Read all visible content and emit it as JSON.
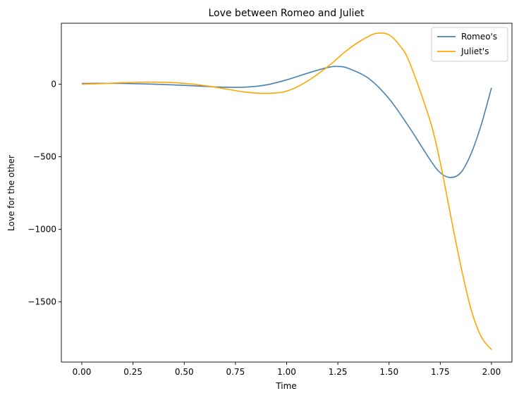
{
  "chart_data": {
    "type": "line",
    "title": "Love between Romeo and Juliet",
    "xlabel": "Time",
    "ylabel": "Love for the other",
    "xlim": [
      -0.1,
      2.1
    ],
    "ylim": [
      -1915,
      420
    ],
    "xticks": [
      0.0,
      0.25,
      0.5,
      0.75,
      1.0,
      1.25,
      1.5,
      1.75,
      2.0
    ],
    "xtick_labels": [
      "0.00",
      "0.25",
      "0.50",
      "0.75",
      "1.00",
      "1.25",
      "1.50",
      "1.75",
      "2.00"
    ],
    "yticks": [
      0,
      -500,
      -1000,
      -1500
    ],
    "ytick_labels": [
      "0",
      "−500",
      "−1000",
      "−1500"
    ],
    "grid": false,
    "legend_position": "top-right",
    "series": [
      {
        "name": "Romeo's",
        "color": "#4682b4",
        "x": [
          0.0,
          0.1,
          0.2,
          0.3,
          0.4,
          0.5,
          0.6,
          0.7,
          0.8,
          0.9,
          1.0,
          1.1,
          1.2,
          1.25,
          1.3,
          1.4,
          1.5,
          1.6,
          1.7,
          1.75,
          1.8,
          1.85,
          1.9,
          1.95,
          2.0
        ],
        "y": [
          5,
          6,
          5,
          2,
          -2,
          -8,
          -15,
          -21,
          -20,
          -5,
          30,
          75,
          115,
          122,
          110,
          40,
          -100,
          -300,
          -520,
          -610,
          -643,
          -610,
          -480,
          -280,
          -25
        ]
      },
      {
        "name": "Juliet's",
        "color": "#ffa500",
        "x": [
          0.0,
          0.1,
          0.2,
          0.3,
          0.4,
          0.5,
          0.6,
          0.7,
          0.8,
          0.9,
          1.0,
          1.1,
          1.2,
          1.3,
          1.4,
          1.45,
          1.5,
          1.55,
          1.6,
          1.7,
          1.75,
          1.8,
          1.85,
          1.9,
          1.95,
          2.0
        ],
        "y": [
          0,
          4,
          10,
          14,
          13,
          6,
          -10,
          -32,
          -55,
          -63,
          -48,
          20,
          120,
          240,
          330,
          352,
          340,
          270,
          150,
          -250,
          -540,
          -900,
          -1250,
          -1550,
          -1740,
          -1830
        ]
      }
    ]
  }
}
